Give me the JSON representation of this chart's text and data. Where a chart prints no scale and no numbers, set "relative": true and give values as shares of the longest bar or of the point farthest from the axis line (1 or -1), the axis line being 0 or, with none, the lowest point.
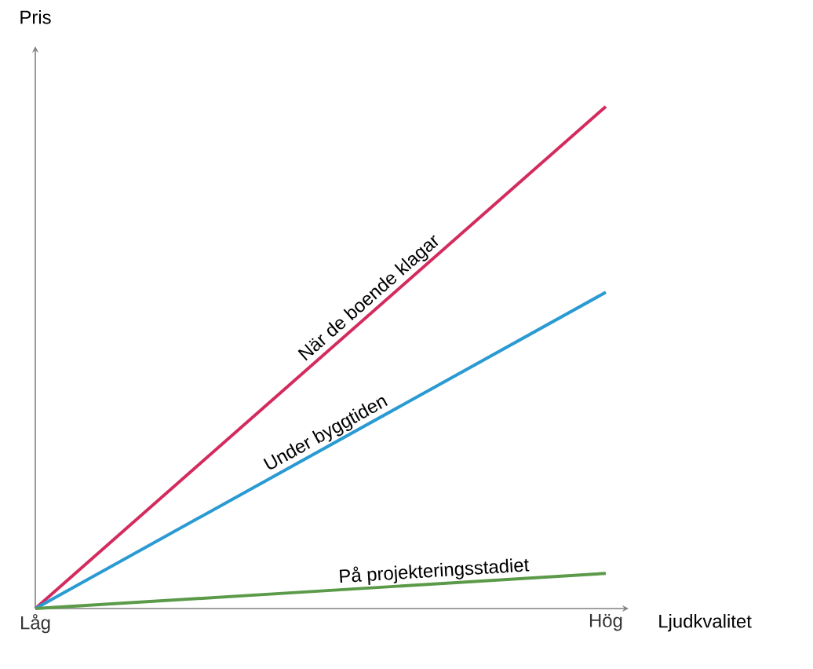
{
  "chart_data": {
    "type": "line",
    "relative": true,
    "xlabel": "Ljudkvalitet",
    "ylabel": "Pris",
    "categories": [
      "Låg",
      "Hög"
    ],
    "series": [
      {
        "name": "När de boende klagar",
        "color": "#d42b5e",
        "values": [
          0,
          1
        ]
      },
      {
        "name": "Under byggtiden",
        "color": "#2a9ad3",
        "values": [
          0,
          0.63
        ]
      },
      {
        "name": "På projekteringsstadiet",
        "color": "#5b9a48",
        "values": [
          0,
          0.07
        ]
      }
    ],
    "marker": "none",
    "line_style": "solid"
  }
}
